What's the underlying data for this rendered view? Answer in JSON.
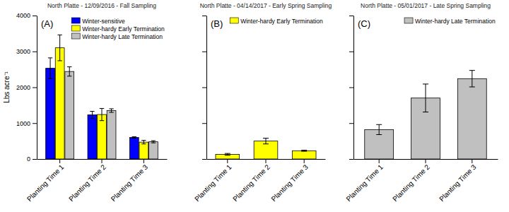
{
  "chart_data": [
    {
      "type": "bar",
      "title": "North Platte - 12/09/2016 - Fall Sampling",
      "annotation": "(A)",
      "y_label": "Lbs acre⁻¹",
      "categories": [
        "Planting Time 1",
        "Planting Time 2",
        "Planting Time 3"
      ],
      "series": [
        {
          "name": "Winter-sensitive",
          "color": "#0000ff",
          "values": [
            2530,
            1230,
            600
          ],
          "errors": [
            290,
            100,
            20
          ]
        },
        {
          "name": "Winter-hardy Early Termination",
          "color": "#ffff00",
          "values": [
            3100,
            1240,
            470
          ],
          "errors": [
            360,
            170,
            50
          ]
        },
        {
          "name": "Winter-hardy Late Termination",
          "color": "#c0c0c0",
          "values": [
            2440,
            1350,
            480
          ],
          "errors": [
            130,
            50,
            30
          ]
        }
      ],
      "ylim": [
        0,
        4000
      ],
      "yticks": [
        0,
        1000,
        2000,
        3000,
        4000
      ],
      "legend": "top-right"
    },
    {
      "type": "bar",
      "title": "North Platte - 04/14/2017 - Early Spring Sampling",
      "annotation": "(B)",
      "categories": [
        "Planting Time 1",
        "Planting Time 2",
        "Planting Time 3"
      ],
      "series": [
        {
          "name": "Winter-hardy Early Termination",
          "color": "#ffff00",
          "values": [
            130,
            500,
            230
          ],
          "errors": [
            25,
            80,
            15
          ]
        }
      ],
      "ylim": [
        0,
        4000
      ],
      "yticks": [
        0,
        1000,
        2000,
        3000,
        4000
      ],
      "tick_labels": "x",
      "legend": "top-right"
    },
    {
      "type": "bar",
      "title": "North Platte - 05/01/2017 - Late Spring Sampling",
      "annotation": "(C)",
      "categories": [
        "Planting Time 1",
        "Planting Time 2",
        "Planting Time 3"
      ],
      "series": [
        {
          "name": "Winter-hardy Late Termination",
          "color": "#c0c0c0",
          "values": [
            820,
            1700,
            2240
          ],
          "errors": [
            140,
            390,
            230
          ]
        }
      ],
      "ylim": [
        0,
        4000
      ],
      "yticks": [
        0,
        1000,
        2000,
        3000,
        4000
      ],
      "tick_labels": "x",
      "legend": "top-right"
    }
  ]
}
